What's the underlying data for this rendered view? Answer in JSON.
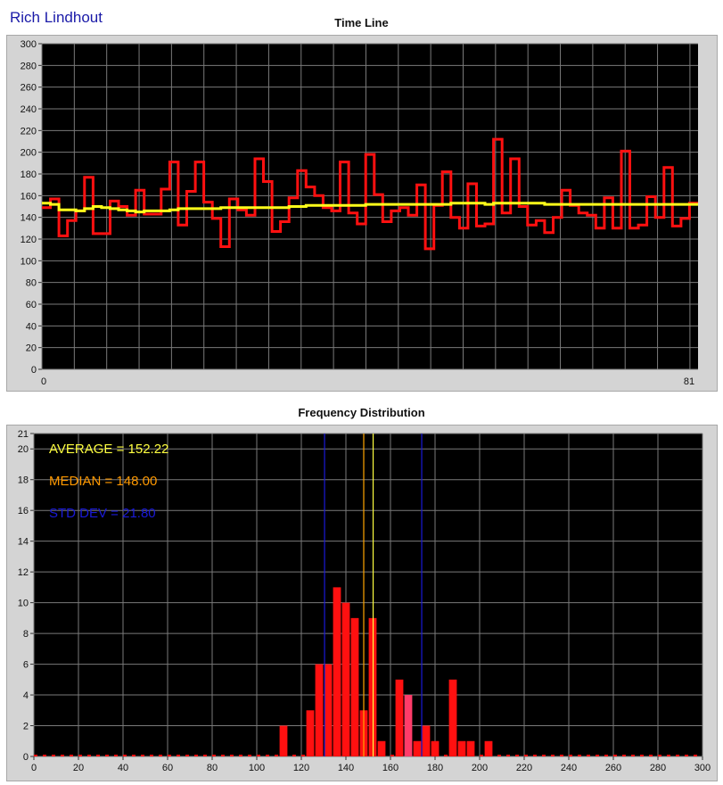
{
  "author": "Rich Lindhout",
  "chart_data": [
    {
      "type": "line",
      "title": "Time Line",
      "ylim": [
        0,
        300
      ],
      "y_ticks": [
        "0",
        "20",
        "40",
        "60",
        "80",
        "100",
        "120",
        "140",
        "160",
        "180",
        "200",
        "220",
        "240",
        "260",
        "280",
        "300"
      ],
      "x_ticks": [
        "0",
        "81"
      ],
      "xlim": [
        0,
        81
      ],
      "grid": true,
      "colors": {
        "background": "#000000",
        "grid": "#7a7a7a",
        "value": "#ff1010",
        "running_average": "#ffff1a"
      },
      "series": [
        {
          "values": [
            149,
            157,
            123,
            137,
            146,
            177,
            125,
            125,
            155,
            150,
            142,
            165,
            143,
            143,
            166,
            191,
            133,
            164,
            191,
            154,
            139,
            113,
            157,
            147,
            142,
            194,
            173,
            127,
            136,
            158,
            183,
            168,
            160,
            149,
            146,
            191,
            144,
            134,
            198,
            161,
            136,
            146,
            149,
            142,
            170,
            111,
            151,
            182,
            140,
            130,
            171,
            132,
            134,
            212,
            144,
            194,
            150,
            133,
            137,
            126,
            140,
            165,
            151,
            144,
            142,
            130,
            158,
            130,
            201,
            130,
            133,
            159,
            140,
            186,
            132,
            139,
            153
          ]
        },
        {
          "values": [
            153,
            152,
            147,
            147,
            146,
            148,
            150,
            149,
            148,
            147,
            146,
            145,
            146,
            146,
            146,
            147,
            148,
            148,
            148,
            148,
            148,
            149,
            149,
            149,
            149,
            149,
            149,
            149,
            149,
            150,
            150,
            151,
            151,
            151,
            151,
            151,
            151,
            151,
            152,
            152,
            152,
            152,
            152,
            152,
            152,
            152,
            152,
            152,
            153,
            153,
            153,
            153,
            152,
            153,
            153,
            153,
            153,
            153,
            153,
            152,
            152,
            152,
            152,
            152,
            152,
            152,
            152,
            152,
            152,
            152,
            152,
            152,
            152,
            152,
            152,
            152,
            152
          ]
        }
      ]
    },
    {
      "type": "bar",
      "title": "Frequency Distribution",
      "xlim": [
        0,
        300
      ],
      "ylim": [
        0,
        21
      ],
      "x_ticks": [
        "0",
        "20",
        "40",
        "60",
        "80",
        "100",
        "120",
        "140",
        "160",
        "180",
        "200",
        "220",
        "240",
        "260",
        "280",
        "300"
      ],
      "y_ticks": [
        "0",
        "2",
        "4",
        "6",
        "8",
        "10",
        "12",
        "14",
        "16",
        "18",
        "20",
        "21"
      ],
      "grid": true,
      "bin_width": 4,
      "bins": [
        {
          "x": 112,
          "value": 2
        },
        {
          "x": 124,
          "value": 3
        },
        {
          "x": 128,
          "value": 6
        },
        {
          "x": 132,
          "value": 6
        },
        {
          "x": 136,
          "value": 11
        },
        {
          "x": 140,
          "value": 10
        },
        {
          "x": 144,
          "value": 9
        },
        {
          "x": 148,
          "value": 3
        },
        {
          "x": 152,
          "value": 9
        },
        {
          "x": 156,
          "value": 1
        },
        {
          "x": 164,
          "value": 5
        },
        {
          "x": 168,
          "value": 4
        },
        {
          "x": 172,
          "value": 1
        },
        {
          "x": 176,
          "value": 2
        },
        {
          "x": 180,
          "value": 1
        },
        {
          "x": 188,
          "value": 5
        },
        {
          "x": 192,
          "value": 1
        },
        {
          "x": 196,
          "value": 1
        },
        {
          "x": 204,
          "value": 1
        }
      ],
      "highlight_bin_x": 168,
      "reference_lines": [
        {
          "x": 130.42,
          "color": "#1a1ad8"
        },
        {
          "x": 148.0,
          "color": "#ffa500"
        },
        {
          "x": 152.22,
          "color": "#ffff40"
        },
        {
          "x": 174.02,
          "color": "#1a1ad8"
        }
      ],
      "annotations": [
        {
          "text": "AVERAGE = 152.22",
          "color": "#ffff40"
        },
        {
          "text": "MEDIAN = 148.00",
          "color": "#ff9900"
        },
        {
          "text": "STD DEV = 21.80",
          "color": "#1a1ad8"
        }
      ],
      "colors": {
        "background": "#000000",
        "grid": "#7a7a7a",
        "bar": "#ff1010",
        "highlight_bar": "#ff3c6a"
      }
    }
  ]
}
